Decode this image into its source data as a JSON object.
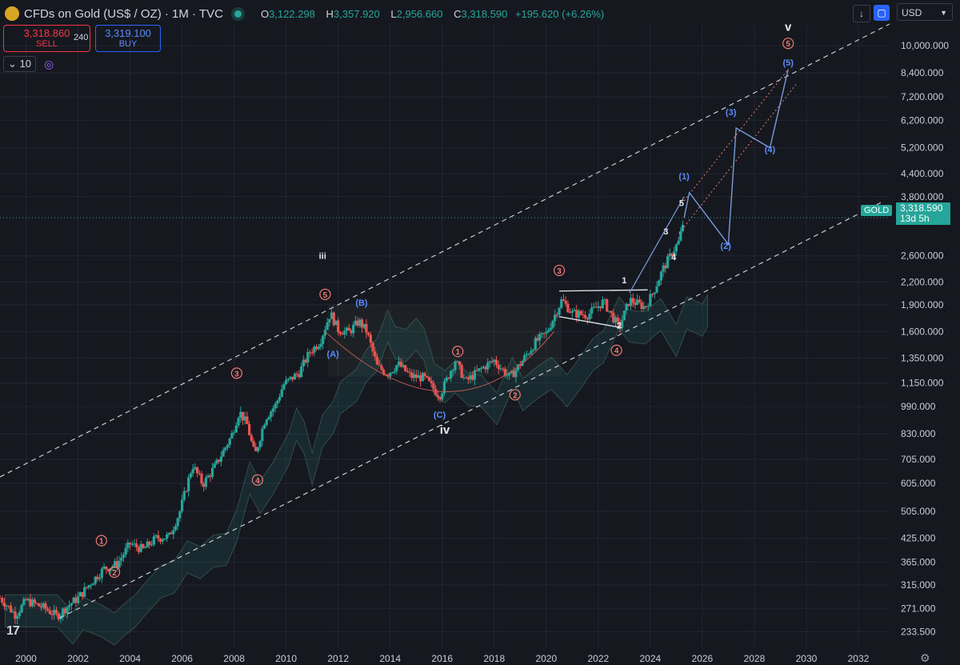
{
  "header": {
    "title": "CFDs on Gold (US$ / OZ) · 1M · TVC",
    "open_key": "O",
    "open": "3,122.298",
    "high_key": "H",
    "high": "3,357.920",
    "low_key": "L",
    "low": "2,956.660",
    "close_key": "C",
    "close": "3,318.590",
    "change": "+195.620 (+6.26%)"
  },
  "trade": {
    "sell_price": "3,318.860",
    "sell_label": "SELL",
    "spread": "240",
    "buy_price": "3,319.100",
    "buy_label": "BUY"
  },
  "indicator": {
    "value": "10"
  },
  "toolbar": {
    "currency": "USD"
  },
  "price_tag": {
    "symbol": "GOLD",
    "price": "3,318.590",
    "countdown": "13d 5h"
  },
  "colors": {
    "background": "#161820",
    "up": "#26a69a",
    "down": "#ef5350",
    "wave_blue": "#5b8cff",
    "wave_red": "#f07a73",
    "projection": "#7b9ad8"
  },
  "chart_data": {
    "type": "candlestick",
    "title": "CFDs on Gold (US$ / OZ) · 1M · TVC",
    "y_scale": "log",
    "ylim": [
      210,
      11500
    ],
    "xlim": [
      1999.0,
      2033.2
    ],
    "y_ticks": [
      {
        "v": 10000,
        "label": "10,000.000"
      },
      {
        "v": 8400,
        "label": "8,400.000"
      },
      {
        "v": 7200,
        "label": "7,200.000"
      },
      {
        "v": 6200,
        "label": "6,200.000"
      },
      {
        "v": 5200,
        "label": "5,200.000"
      },
      {
        "v": 4400,
        "label": "4,400.000"
      },
      {
        "v": 3800,
        "label": "3,800.000"
      },
      {
        "v": 2600,
        "label": "2,600.000"
      },
      {
        "v": 2200,
        "label": "2,200.000"
      },
      {
        "v": 1900,
        "label": "1,900.000"
      },
      {
        "v": 1600,
        "label": "1,600.000"
      },
      {
        "v": 1350,
        "label": "1,350.000"
      },
      {
        "v": 1150,
        "label": "1,150.000"
      },
      {
        "v": 990,
        "label": "990.000"
      },
      {
        "v": 830,
        "label": "830.000"
      },
      {
        "v": 705,
        "label": "705.000"
      },
      {
        "v": 605,
        "label": "605.000"
      },
      {
        "v": 505,
        "label": "505.000"
      },
      {
        "v": 425,
        "label": "425.000"
      },
      {
        "v": 365,
        "label": "365.000"
      },
      {
        "v": 315,
        "label": "315.000"
      },
      {
        "v": 271,
        "label": "271.000"
      },
      {
        "v": 233.5,
        "label": "233.500"
      }
    ],
    "x_ticks": [
      "2000",
      "2002",
      "2004",
      "2006",
      "2008",
      "2010",
      "2012",
      "2014",
      "2016",
      "2018",
      "2020",
      "2022",
      "2024",
      "2026",
      "2028",
      "2030",
      "2032"
    ],
    "price_path": [
      [
        1999.0,
        290
      ],
      [
        1999.6,
        260
      ],
      [
        2000.0,
        285
      ],
      [
        2000.7,
        272
      ],
      [
        2001.2,
        258
      ],
      [
        2001.6,
        275
      ],
      [
        2002.0,
        290
      ],
      [
        2002.5,
        320
      ],
      [
        2003.0,
        350
      ],
      [
        2003.5,
        360
      ],
      [
        2004.0,
        410
      ],
      [
        2004.5,
        395
      ],
      [
        2005.0,
        425
      ],
      [
        2005.5,
        430
      ],
      [
        2005.9,
        500
      ],
      [
        2006.4,
        680
      ],
      [
        2006.8,
        600
      ],
      [
        2007.3,
        680
      ],
      [
        2007.9,
        820
      ],
      [
        2008.2,
        960
      ],
      [
        2008.5,
        880
      ],
      [
        2008.8,
        720
      ],
      [
        2009.2,
        920
      ],
      [
        2009.6,
        1000
      ],
      [
        2009.9,
        1140
      ],
      [
        2010.5,
        1230
      ],
      [
        2010.9,
        1400
      ],
      [
        2011.3,
        1500
      ],
      [
        2011.7,
        1800
      ],
      [
        2012.0,
        1620
      ],
      [
        2012.4,
        1590
      ],
      [
        2012.8,
        1710
      ],
      [
        2013.1,
        1600
      ],
      [
        2013.5,
        1280
      ],
      [
        2013.9,
        1220
      ],
      [
        2014.3,
        1300
      ],
      [
        2014.8,
        1200
      ],
      [
        2015.3,
        1190
      ],
      [
        2015.9,
        1060
      ],
      [
        2016.5,
        1330
      ],
      [
        2016.9,
        1160
      ],
      [
        2017.5,
        1260
      ],
      [
        2018.0,
        1330
      ],
      [
        2018.6,
        1190
      ],
      [
        2019.0,
        1300
      ],
      [
        2019.6,
        1500
      ],
      [
        2020.0,
        1580
      ],
      [
        2020.6,
        1960
      ],
      [
        2021.0,
        1800
      ],
      [
        2021.6,
        1780
      ],
      [
        2022.2,
        1940
      ],
      [
        2022.8,
        1640
      ],
      [
        2023.2,
        1960
      ],
      [
        2023.8,
        1870
      ],
      [
        2024.1,
        2050
      ],
      [
        2024.5,
        2400
      ],
      [
        2024.9,
        2700
      ],
      [
        2025.1,
        2850
      ],
      [
        2025.3,
        3318.59
      ]
    ],
    "channel_lines": [
      {
        "name": "upper",
        "points": [
          [
            1999.0,
            630
          ],
          [
            2033.2,
            11500
          ]
        ]
      },
      {
        "name": "lower",
        "points": [
          [
            2001.3,
            255
          ],
          [
            2033.0,
            3700
          ]
        ]
      }
    ],
    "projection": [
      [
        2025.3,
        3318.59
      ],
      [
        2025.5,
        3900
      ],
      [
        2027.0,
        2800
      ],
      [
        2027.3,
        5900
      ],
      [
        2028.6,
        5200
      ],
      [
        2029.3,
        8600
      ]
    ],
    "wave_labels": [
      {
        "t": "v",
        "x": 2029.3,
        "y": 11000,
        "c": "white"
      },
      {
        "t": "iii",
        "x": 2011.4,
        "y": 2550,
        "c": "white"
      },
      {
        "t": "iv",
        "x": 2016.1,
        "y": 830,
        "c": "white"
      },
      {
        "t": "5",
        "x": 2011.5,
        "y": 1990,
        "c": "red",
        "circle": true
      },
      {
        "t": "(B)",
        "x": 2012.9,
        "y": 1890,
        "c": "blue"
      },
      {
        "t": "(A)",
        "x": 2011.8,
        "y": 1360,
        "c": "blue"
      },
      {
        "t": "(C)",
        "x": 2015.9,
        "y": 920,
        "c": "blue"
      },
      {
        "t": "1",
        "x": 2016.6,
        "y": 1380,
        "c": "red",
        "circle": true
      },
      {
        "t": "2",
        "x": 2018.8,
        "y": 1045,
        "c": "red",
        "circle": true
      },
      {
        "t": "3",
        "x": 2020.5,
        "y": 2320,
        "c": "red",
        "circle": true
      },
      {
        "t": "4",
        "x": 2022.7,
        "y": 1390,
        "c": "red",
        "circle": true
      },
      {
        "t": "3",
        "x": 2008.1,
        "y": 1200,
        "c": "red",
        "circle": true
      },
      {
        "t": "4",
        "x": 2008.9,
        "y": 605,
        "c": "red",
        "circle": true
      },
      {
        "t": "1",
        "x": 2002.9,
        "y": 410,
        "c": "red",
        "circle": true
      },
      {
        "t": "2",
        "x": 2003.4,
        "y": 335,
        "c": "red",
        "circle": true
      },
      {
        "t": "1",
        "x": 2023.0,
        "y": 2180,
        "c": "white"
      },
      {
        "t": "2",
        "x": 2022.8,
        "y": 1630,
        "c": "white"
      },
      {
        "t": "3",
        "x": 2024.6,
        "y": 2980,
        "c": "white"
      },
      {
        "t": "4",
        "x": 2024.9,
        "y": 2530,
        "c": "white"
      },
      {
        "t": "5",
        "x": 2025.2,
        "y": 3580,
        "c": "white"
      },
      {
        "t": "(1)",
        "x": 2025.3,
        "y": 4250,
        "c": "blue"
      },
      {
        "t": "(2)",
        "x": 2026.9,
        "y": 2720,
        "c": "blue"
      },
      {
        "t": "(3)",
        "x": 2027.1,
        "y": 6400,
        "c": "blue"
      },
      {
        "t": "(4)",
        "x": 2028.6,
        "y": 5050,
        "c": "blue"
      },
      {
        "t": "(5)",
        "x": 2029.3,
        "y": 8800,
        "c": "blue"
      },
      {
        "t": "5",
        "x": 2029.3,
        "y": 9950,
        "c": "red",
        "circle": true
      }
    ]
  }
}
